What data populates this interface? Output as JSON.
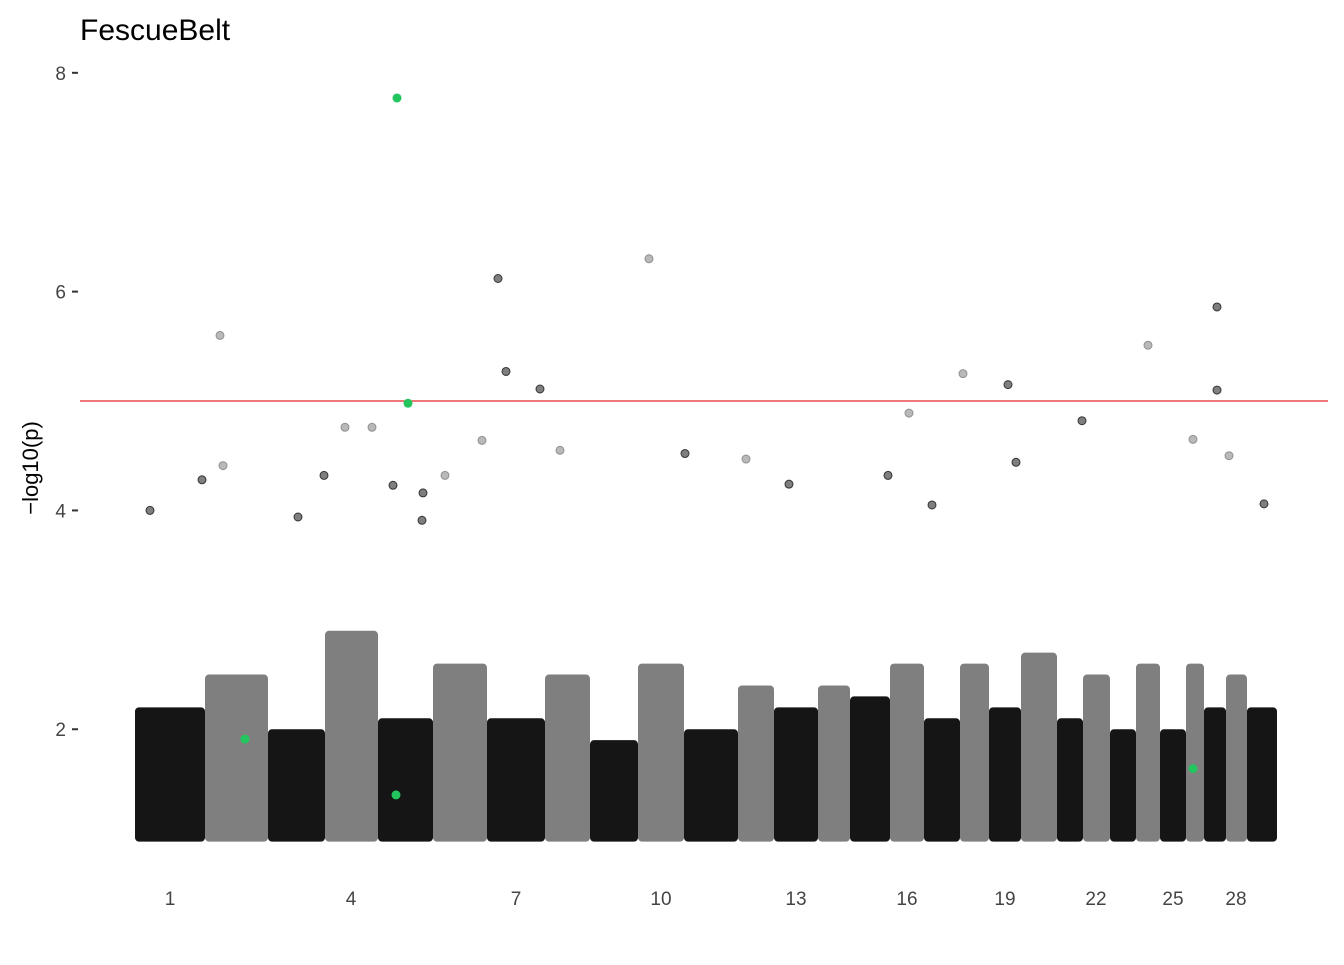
{
  "chart_data": {
    "type": "manhattan",
    "title": "FescueBelt",
    "y_label": "−log10(p)",
    "xlim": [
      0,
      1248
    ],
    "ylim": [
      0.75,
      8.3
    ],
    "yticks": [
      2,
      4,
      6,
      8
    ],
    "xticks": [
      {
        "value": 90,
        "label": "1"
      },
      {
        "value": 271,
        "label": "4"
      },
      {
        "value": 436,
        "label": "7"
      },
      {
        "value": 581,
        "label": "10"
      },
      {
        "value": 716,
        "label": "13"
      },
      {
        "value": 827,
        "label": "16"
      },
      {
        "value": 925,
        "label": "19"
      },
      {
        "value": 1016,
        "label": "22"
      },
      {
        "value": 1093,
        "label": "25"
      },
      {
        "value": 1156,
        "label": "28"
      }
    ],
    "threshold": 5,
    "threshold_color": "#e8262a",
    "colors": [
      "#151515",
      "#7f7f7f"
    ],
    "chromosomes": {
      "start": [
        55,
        125,
        188,
        245,
        298,
        353,
        407,
        465,
        510,
        558,
        604,
        658,
        694,
        738,
        770,
        810,
        844,
        880,
        909,
        941,
        977,
        1003,
        1030,
        1056,
        1080,
        1106,
        1124,
        1146,
        1167
      ],
      "end": [
        125,
        188,
        245,
        298,
        353,
        407,
        465,
        510,
        558,
        604,
        658,
        694,
        738,
        770,
        810,
        844,
        880,
        909,
        941,
        977,
        1003,
        1030,
        1056,
        1080,
        1106,
        1124,
        1146,
        1167,
        1197
      ],
      "bulk_top": [
        2.2,
        2.5,
        2.0,
        2.9,
        2.1,
        2.6,
        2.1,
        2.5,
        1.9,
        2.6,
        2.0,
        2.4,
        2.2,
        2.4,
        2.3,
        2.6,
        2.1,
        2.6,
        2.2,
        2.7,
        2.1,
        2.5,
        2.0,
        2.6,
        2.0,
        2.6,
        2.2,
        2.5,
        2.2
      ]
    },
    "points": {
      "x": [
        140,
        143,
        122,
        418,
        426,
        460,
        569,
        883,
        928,
        1068,
        1137,
        1137,
        829,
        1002,
        265,
        292,
        402,
        1113,
        244,
        480,
        605,
        666,
        808,
        936,
        1149,
        313,
        343,
        365,
        709,
        852,
        1184,
        70,
        218,
        342
      ],
      "y": [
        5.6,
        4.41,
        4.28,
        6.12,
        5.27,
        5.11,
        6.3,
        5.25,
        5.15,
        5.51,
        5.86,
        5.1,
        4.89,
        4.82,
        4.76,
        4.76,
        4.64,
        4.65,
        4.32,
        4.55,
        4.52,
        4.47,
        4.32,
        4.44,
        4.5,
        4.23,
        4.16,
        4.32,
        4.24,
        4.05,
        4.06,
        4.0,
        3.94,
        3.91
      ]
    },
    "highlight": {
      "color": "#22c55e",
      "x": [
        317,
        328,
        165,
        316,
        1113
      ],
      "y": [
        7.77,
        4.98,
        1.91,
        1.4,
        1.64
      ]
    }
  }
}
